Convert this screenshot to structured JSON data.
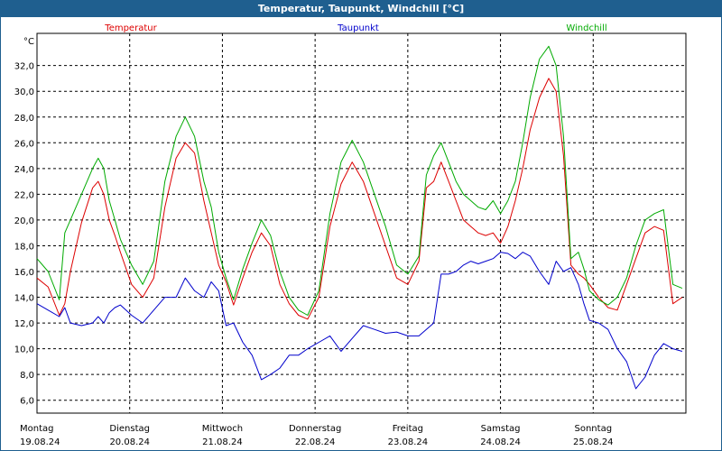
{
  "window": {
    "title": "Temperatur, Taupunkt, Windchill [°C]"
  },
  "chart_data": {
    "type": "line",
    "unit_label": "°C",
    "ylim": [
      5.0,
      34.5
    ],
    "yticks": [
      6.0,
      8.0,
      10.0,
      12.0,
      14.0,
      16.0,
      18.0,
      20.0,
      22.0,
      24.0,
      26.0,
      28.0,
      30.0,
      32.0
    ],
    "xlim": [
      0,
      7
    ],
    "x_categories": [
      {
        "day": "Montag",
        "date": "19.08.24"
      },
      {
        "day": "Dienstag",
        "date": "20.08.24"
      },
      {
        "day": "Mittwoch",
        "date": "21.08.24"
      },
      {
        "day": "Donnerstag",
        "date": "22.08.24"
      },
      {
        "day": "Freitag",
        "date": "23.08.24"
      },
      {
        "day": "Samstag",
        "date": "24.08.24"
      },
      {
        "day": "Sonntag",
        "date": "25.08.24"
      }
    ],
    "grid": true,
    "series": [
      {
        "name": "Temperatur",
        "color": "#dd0000",
        "x": [
          0.0,
          0.12,
          0.24,
          0.3,
          0.36,
          0.48,
          0.6,
          0.66,
          0.72,
          0.78,
          0.84,
          0.9,
          1.02,
          1.14,
          1.26,
          1.38,
          1.5,
          1.6,
          1.7,
          1.8,
          1.88,
          1.96,
          2.04,
          2.12,
          2.22,
          2.32,
          2.42,
          2.52,
          2.62,
          2.72,
          2.82,
          2.92,
          3.04,
          3.16,
          3.28,
          3.4,
          3.52,
          3.64,
          3.76,
          3.88,
          4.0,
          4.12,
          4.2,
          4.28,
          4.36,
          4.44,
          4.52,
          4.6,
          4.68,
          4.76,
          4.84,
          4.92,
          5.0,
          5.08,
          5.16,
          5.24,
          5.32,
          5.42,
          5.52,
          5.6,
          5.68,
          5.76,
          5.84,
          5.9,
          5.96,
          6.06,
          6.16,
          6.26,
          6.36,
          6.46,
          6.56,
          6.66,
          6.76,
          6.86,
          6.96
        ],
        "y": [
          15.5,
          14.8,
          12.6,
          13.5,
          16.0,
          19.8,
          22.5,
          23.0,
          22.0,
          20.0,
          18.8,
          17.5,
          15.0,
          14.0,
          15.5,
          21.0,
          24.8,
          26.0,
          25.2,
          21.5,
          19.0,
          16.5,
          15.2,
          13.4,
          15.5,
          17.5,
          19.0,
          18.0,
          15.0,
          13.5,
          12.6,
          12.3,
          14.0,
          19.5,
          22.8,
          24.5,
          23.0,
          20.5,
          18.0,
          15.5,
          15.0,
          16.8,
          22.5,
          23.0,
          24.5,
          23.0,
          21.5,
          20.0,
          19.5,
          19.0,
          18.8,
          19.0,
          18.2,
          19.5,
          21.5,
          24.0,
          27.0,
          29.5,
          31.0,
          30.0,
          25.0,
          16.5,
          15.8,
          15.5,
          15.0,
          14.0,
          13.2,
          13.0,
          15.0,
          17.0,
          19.0,
          19.5,
          19.2,
          13.5,
          14.0
        ]
      },
      {
        "name": "Taupunkt",
        "color": "#0000cc",
        "x": [
          0.0,
          0.12,
          0.24,
          0.3,
          0.36,
          0.48,
          0.6,
          0.66,
          0.72,
          0.78,
          0.84,
          0.9,
          1.02,
          1.14,
          1.26,
          1.38,
          1.5,
          1.6,
          1.7,
          1.8,
          1.88,
          1.96,
          2.04,
          2.12,
          2.22,
          2.32,
          2.42,
          2.52,
          2.62,
          2.72,
          2.82,
          2.92,
          3.04,
          3.16,
          3.28,
          3.4,
          3.52,
          3.64,
          3.76,
          3.88,
          4.0,
          4.12,
          4.2,
          4.28,
          4.36,
          4.44,
          4.52,
          4.6,
          4.68,
          4.76,
          4.84,
          4.92,
          5.0,
          5.08,
          5.16,
          5.24,
          5.32,
          5.42,
          5.52,
          5.6,
          5.68,
          5.76,
          5.84,
          5.9,
          5.96,
          6.06,
          6.16,
          6.26,
          6.36,
          6.46,
          6.56,
          6.66,
          6.76,
          6.86,
          6.96
        ],
        "y": [
          13.5,
          13.0,
          12.5,
          13.2,
          12.0,
          11.8,
          12.0,
          12.5,
          12.0,
          12.8,
          13.2,
          13.4,
          12.6,
          12.0,
          13.0,
          14.0,
          14.0,
          15.5,
          14.5,
          14.0,
          15.2,
          14.5,
          11.8,
          12.0,
          10.5,
          9.5,
          7.6,
          8.0,
          8.5,
          9.5,
          9.5,
          10.0,
          10.5,
          11.0,
          9.8,
          10.8,
          11.8,
          11.5,
          11.2,
          11.3,
          11.0,
          11.0,
          11.5,
          12.0,
          15.8,
          15.8,
          16.0,
          16.5,
          16.8,
          16.6,
          16.8,
          17.0,
          17.5,
          17.4,
          17.0,
          17.5,
          17.2,
          16.0,
          15.0,
          16.8,
          16.0,
          16.3,
          15.0,
          13.5,
          12.2,
          12.0,
          11.5,
          10.0,
          9.0,
          6.9,
          7.8,
          9.5,
          10.4,
          10.0,
          9.8
        ]
      },
      {
        "name": "Windchill",
        "color": "#00aa00",
        "x": [
          0.0,
          0.12,
          0.24,
          0.3,
          0.36,
          0.48,
          0.6,
          0.66,
          0.72,
          0.78,
          0.84,
          0.9,
          1.02,
          1.14,
          1.26,
          1.38,
          1.5,
          1.6,
          1.7,
          1.8,
          1.88,
          1.96,
          2.04,
          2.12,
          2.22,
          2.32,
          2.42,
          2.52,
          2.62,
          2.72,
          2.82,
          2.92,
          3.04,
          3.16,
          3.28,
          3.4,
          3.52,
          3.64,
          3.76,
          3.88,
          4.0,
          4.12,
          4.2,
          4.28,
          4.36,
          4.44,
          4.52,
          4.6,
          4.68,
          4.76,
          4.84,
          4.92,
          5.0,
          5.08,
          5.16,
          5.24,
          5.32,
          5.42,
          5.52,
          5.6,
          5.68,
          5.76,
          5.84,
          5.9,
          5.96,
          6.06,
          6.16,
          6.26,
          6.36,
          6.46,
          6.56,
          6.66,
          6.76,
          6.86,
          6.96
        ],
        "y": [
          17.0,
          16.0,
          13.8,
          19.0,
          20.0,
          22.0,
          24.0,
          24.8,
          24.0,
          21.5,
          20.0,
          18.5,
          16.5,
          15.0,
          16.8,
          23.0,
          26.5,
          28.0,
          26.5,
          23.0,
          21.0,
          17.5,
          15.5,
          13.8,
          16.2,
          18.2,
          20.0,
          18.8,
          16.0,
          14.0,
          13.0,
          12.6,
          14.5,
          20.5,
          24.5,
          26.2,
          24.5,
          22.0,
          19.5,
          16.5,
          15.8,
          17.2,
          23.5,
          25.0,
          26.0,
          24.5,
          23.0,
          22.0,
          21.5,
          21.0,
          20.8,
          21.5,
          20.5,
          21.5,
          23.0,
          26.0,
          29.5,
          32.5,
          33.5,
          32.0,
          26.5,
          17.0,
          17.5,
          16.2,
          14.5,
          13.8,
          13.4,
          14.0,
          15.5,
          18.0,
          20.0,
          20.5,
          20.8,
          15.0,
          14.7
        ]
      }
    ]
  }
}
